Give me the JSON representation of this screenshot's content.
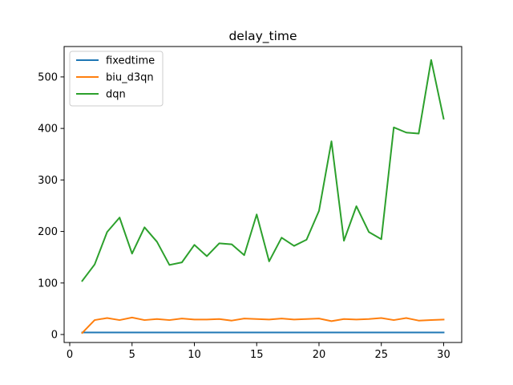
{
  "chart_data": {
    "type": "line",
    "title": "delay_time",
    "xlabel": "",
    "ylabel": "",
    "xlim": [
      -0.45,
      31.45
    ],
    "ylim": [
      -15.5,
      559
    ],
    "xticks": [
      0,
      5,
      10,
      15,
      20,
      25,
      30
    ],
    "yticks": [
      0,
      100,
      200,
      300,
      400,
      500
    ],
    "grid": false,
    "legend_position": "upper-left",
    "x": [
      1,
      2,
      3,
      4,
      5,
      6,
      7,
      8,
      9,
      10,
      11,
      12,
      13,
      14,
      15,
      16,
      17,
      18,
      19,
      20,
      21,
      22,
      23,
      24,
      25,
      26,
      27,
      28,
      29,
      30
    ],
    "series": [
      {
        "name": "fixedtime",
        "color": "#1f77b4",
        "values": [
          4,
          4,
          4,
          4,
          4,
          4,
          4,
          4,
          4,
          4,
          4,
          4,
          4,
          4,
          4,
          4,
          4,
          4,
          4,
          4,
          4,
          4,
          4,
          4,
          4,
          4,
          4,
          4,
          4,
          4
        ]
      },
      {
        "name": "biu_d3qn",
        "color": "#ff7f0e",
        "values": [
          3,
          28,
          32,
          28,
          33,
          28,
          30,
          28,
          31,
          29,
          29,
          30,
          27,
          31,
          30,
          29,
          31,
          29,
          30,
          31,
          26,
          30,
          29,
          30,
          32,
          28,
          32,
          27,
          28,
          29
        ]
      },
      {
        "name": "dqn",
        "color": "#2ca02c",
        "values": [
          104,
          136,
          199,
          227,
          157,
          208,
          180,
          135,
          140,
          174,
          152,
          177,
          175,
          154,
          233,
          142,
          188,
          172,
          184,
          240,
          375,
          182,
          249,
          199,
          185,
          402,
          392,
          390,
          533,
          419
        ]
      }
    ]
  }
}
